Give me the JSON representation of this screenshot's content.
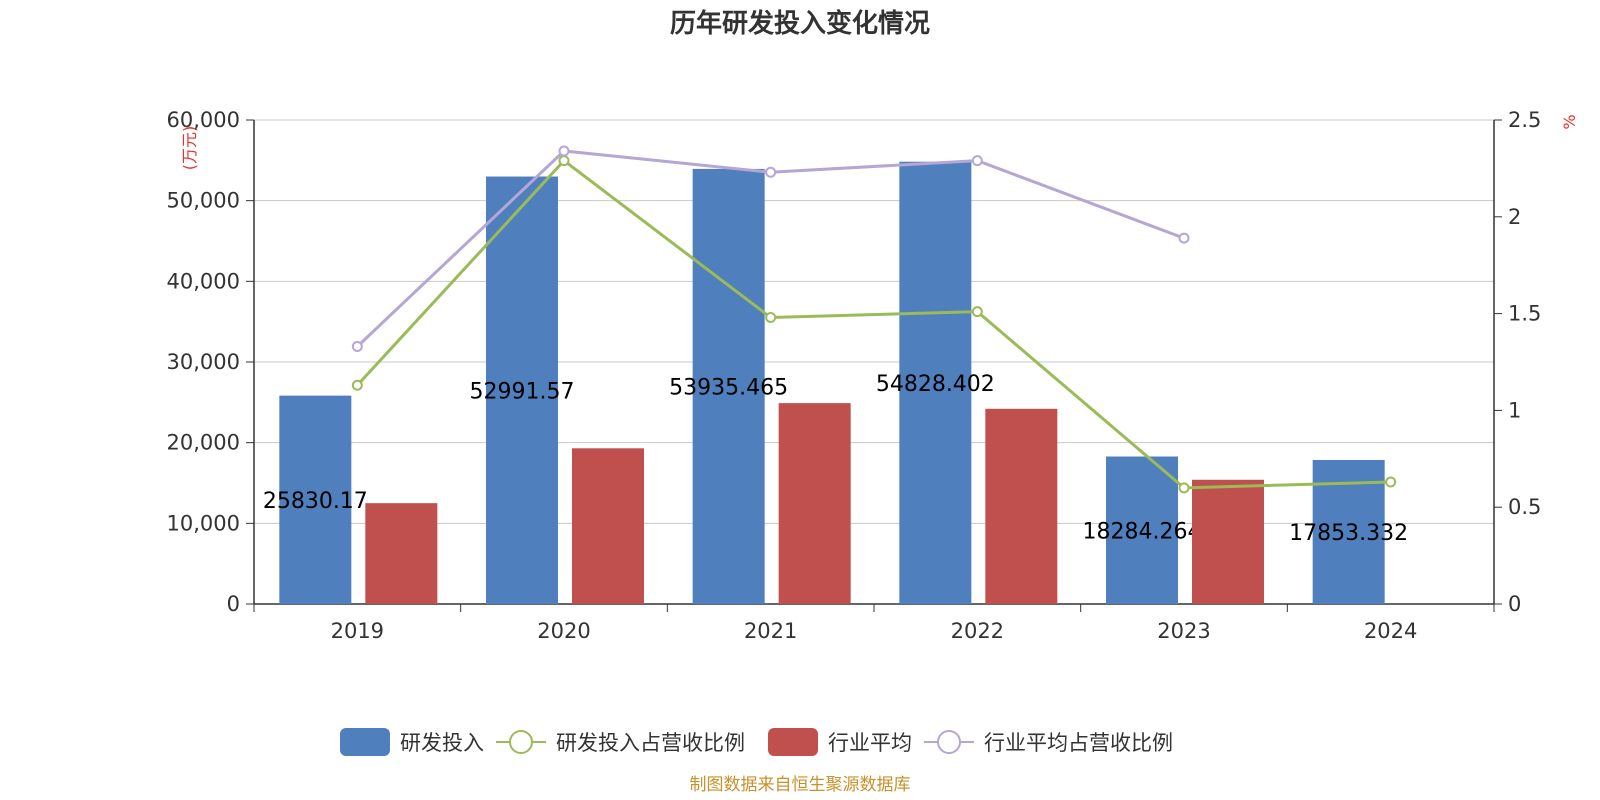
{
  "chart_data": {
    "type": "bar",
    "title": "历年研发投入变化情况",
    "categories": [
      "2019",
      "2020",
      "2021",
      "2022",
      "2023",
      "2024"
    ],
    "y_left": {
      "unit_label": "(万元)",
      "ylim": [
        0,
        60000
      ],
      "ticks": [
        "0",
        "10,000",
        "20,000",
        "30,000",
        "40,000",
        "50,000",
        "60,000"
      ],
      "tick_values": [
        0,
        10000,
        20000,
        30000,
        40000,
        50000,
        60000
      ]
    },
    "y_right": {
      "unit_label": "%",
      "ylim": [
        0,
        2.5
      ],
      "ticks": [
        "0",
        "0.5",
        "1",
        "1.5",
        "2",
        "2.5"
      ],
      "tick_values": [
        0,
        0.5,
        1,
        1.5,
        2,
        2.5
      ]
    },
    "series": [
      {
        "name": "研发投入",
        "kind": "bar",
        "axis": "left",
        "color": "#4f7fbd",
        "values": [
          25830.17,
          52991.57,
          53935.465,
          54828.402,
          18284.264,
          17853.332
        ],
        "labels": [
          "25830.17",
          "52991.57",
          "53935.465",
          "54828.402",
          "18284.264",
          "17853.332"
        ]
      },
      {
        "name": "研发投入占营收比例",
        "kind": "line",
        "axis": "right",
        "color": "#9bbb59",
        "values": [
          1.13,
          2.29,
          1.48,
          1.51,
          0.6,
          0.63
        ]
      },
      {
        "name": "行业平均",
        "kind": "bar",
        "axis": "left",
        "color": "#c0504d",
        "values": [
          12500,
          19300,
          24900,
          24200,
          15400,
          null
        ]
      },
      {
        "name": "行业平均占营收比例",
        "kind": "line",
        "axis": "right",
        "color": "#b5a6d3",
        "values": [
          1.33,
          2.34,
          2.23,
          2.29,
          1.89,
          null
        ]
      }
    ],
    "grid": true,
    "legend_position": "bottom"
  },
  "footer": {
    "source": "制图数据来自恒生聚源数据库"
  }
}
